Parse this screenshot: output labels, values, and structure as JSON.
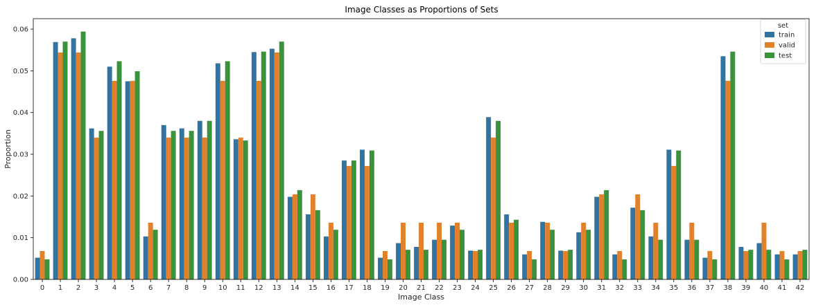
{
  "chart_data": {
    "type": "bar",
    "title": "Image Classes as Proportions of Sets",
    "xlabel": "Image Class",
    "ylabel": "Proportion",
    "ylim": [
      0,
      0.0625
    ],
    "yticks": [
      "0.00",
      "0.01",
      "0.02",
      "0.03",
      "0.04",
      "0.05",
      "0.06"
    ],
    "categories": [
      "0",
      "1",
      "2",
      "3",
      "4",
      "5",
      "6",
      "7",
      "8",
      "9",
      "10",
      "11",
      "12",
      "13",
      "14",
      "15",
      "16",
      "17",
      "18",
      "19",
      "20",
      "21",
      "22",
      "23",
      "24",
      "25",
      "26",
      "27",
      "28",
      "29",
      "30",
      "31",
      "32",
      "33",
      "34",
      "35",
      "36",
      "37",
      "38",
      "39",
      "40",
      "41",
      "42"
    ],
    "legend": {
      "title": "set",
      "position": "top-right"
    },
    "series": [
      {
        "name": "train",
        "color": "#3274a1",
        "values": [
          0.0052,
          0.0569,
          0.0578,
          0.0362,
          0.051,
          0.0475,
          0.0103,
          0.037,
          0.0362,
          0.038,
          0.0518,
          0.0336,
          0.0545,
          0.0553,
          0.0198,
          0.0156,
          0.0103,
          0.0285,
          0.0311,
          0.0052,
          0.0087,
          0.0078,
          0.0095,
          0.0129,
          0.0069,
          0.0389,
          0.0156,
          0.006,
          0.0138,
          0.0069,
          0.0113,
          0.0198,
          0.006,
          0.0172,
          0.0103,
          0.0311,
          0.0095,
          0.0052,
          0.0535,
          0.0078,
          0.0087,
          0.006,
          0.006
        ]
      },
      {
        "name": "valid",
        "color": "#e1812c",
        "values": [
          0.0068,
          0.0544,
          0.0544,
          0.034,
          0.0476,
          0.0476,
          0.0136,
          0.034,
          0.034,
          0.034,
          0.0476,
          0.034,
          0.0476,
          0.0544,
          0.0204,
          0.0204,
          0.0136,
          0.0272,
          0.0272,
          0.0068,
          0.0136,
          0.0136,
          0.0136,
          0.0136,
          0.0068,
          0.034,
          0.0136,
          0.0068,
          0.0136,
          0.0068,
          0.0136,
          0.0204,
          0.0068,
          0.0204,
          0.0136,
          0.0272,
          0.0136,
          0.0068,
          0.0476,
          0.0068,
          0.0136,
          0.0068,
          0.0068
        ]
      },
      {
        "name": "test",
        "color": "#3a923a",
        "values": [
          0.0048,
          0.057,
          0.0594,
          0.0356,
          0.0523,
          0.0499,
          0.0119,
          0.0356,
          0.0356,
          0.038,
          0.0523,
          0.0333,
          0.0546,
          0.057,
          0.0214,
          0.0166,
          0.0119,
          0.0285,
          0.0309,
          0.0048,
          0.0071,
          0.0071,
          0.0095,
          0.0119,
          0.0071,
          0.038,
          0.0143,
          0.0048,
          0.0119,
          0.0071,
          0.0119,
          0.0214,
          0.0048,
          0.0166,
          0.0095,
          0.0309,
          0.0095,
          0.0048,
          0.0546,
          0.0071,
          0.0071,
          0.0048,
          0.0071
        ]
      }
    ]
  }
}
